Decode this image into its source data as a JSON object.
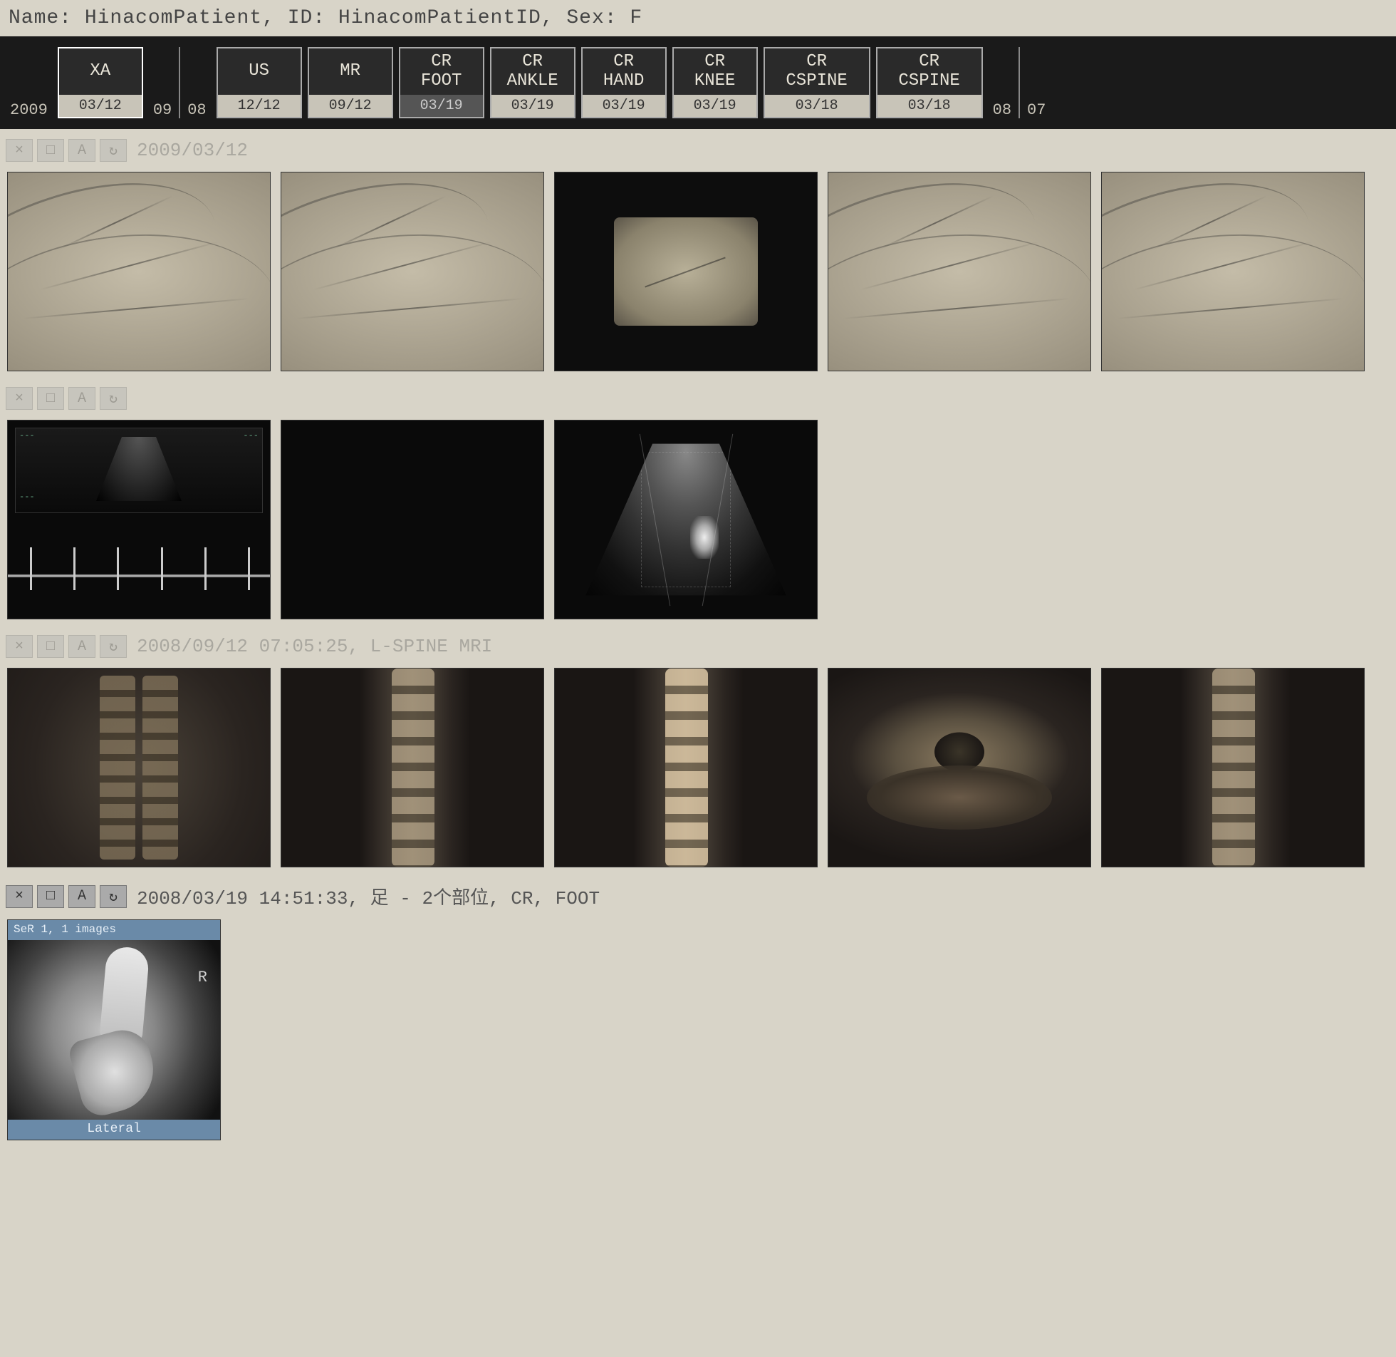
{
  "patient": {
    "name_label": "Name:",
    "name": "HinacomPatient",
    "id_label": "ID:",
    "id": "HinacomPatientID",
    "sex_label": "Sex:",
    "sex": "F"
  },
  "timeline": {
    "year_left": "2009",
    "year_mid1": "09",
    "year_mid2": "08",
    "year_right1": "08",
    "year_right2": "07",
    "studies": [
      {
        "modality": "XA",
        "body": "",
        "date": "03/12",
        "selected": true
      },
      {
        "modality": "US",
        "body": "",
        "date": "12/12",
        "selected": false
      },
      {
        "modality": "MR",
        "body": "",
        "date": "09/12",
        "selected": false
      },
      {
        "modality": "CR",
        "body": "FOOT",
        "date": "03/19",
        "selected": false,
        "date_dark": true
      },
      {
        "modality": "CR",
        "body": "ANKLE",
        "date": "03/19",
        "selected": false
      },
      {
        "modality": "CR",
        "body": "HAND",
        "date": "03/19",
        "selected": false
      },
      {
        "modality": "CR",
        "body": "KNEE",
        "date": "03/19",
        "selected": false
      },
      {
        "modality": "CR",
        "body": "CSPINE",
        "date": "03/18",
        "selected": false,
        "wide": true
      },
      {
        "modality": "CR",
        "body": "CSPINE",
        "date": "03/18",
        "selected": false,
        "wide": true
      }
    ]
  },
  "sections": [
    {
      "id": "xa",
      "faded": true,
      "header_text": "2009/03/12",
      "buttons": [
        "×",
        "□",
        "A",
        "↻"
      ],
      "thumbs": [
        {
          "kind": "angio"
        },
        {
          "kind": "angio"
        },
        {
          "kind": "angio-inset"
        },
        {
          "kind": "angio"
        },
        {
          "kind": "angio"
        }
      ]
    },
    {
      "id": "us",
      "faded": true,
      "header_text": "",
      "buttons": [
        "×",
        "□",
        "A",
        "↻"
      ],
      "thumbs": [
        {
          "kind": "us-console"
        },
        {
          "kind": "dark-blank"
        },
        {
          "kind": "us-fan"
        }
      ]
    },
    {
      "id": "mr",
      "faded": true,
      "header_text": "2008/09/12 07:05:25, L-SPINE MRI",
      "buttons": [
        "×",
        "□",
        "A",
        "↻"
      ],
      "thumbs": [
        {
          "kind": "spine-cor"
        },
        {
          "kind": "spine-sag"
        },
        {
          "kind": "spine-sag-bright"
        },
        {
          "kind": "spine-ax"
        },
        {
          "kind": "spine-sag"
        }
      ]
    },
    {
      "id": "cr",
      "faded": false,
      "header_text": "2008/03/19 14:51:33, 足 - 2个部位, CR, FOOT",
      "buttons": [
        "×",
        "□",
        "A",
        "↻"
      ],
      "thumbs": [
        {
          "kind": "cr-foot",
          "top_label": "SeR 1, 1 images",
          "bottom_label": "Lateral",
          "marker": "R"
        }
      ]
    }
  ],
  "colors": {
    "page_bg": "#d8d4c8",
    "timeline_bg": "#1a1a1a",
    "box_border": "#aaaaaa",
    "box_border_selected": "#ffffff",
    "date_bg": "#c8c4b8",
    "blue_strip": "#6a8aa8"
  }
}
